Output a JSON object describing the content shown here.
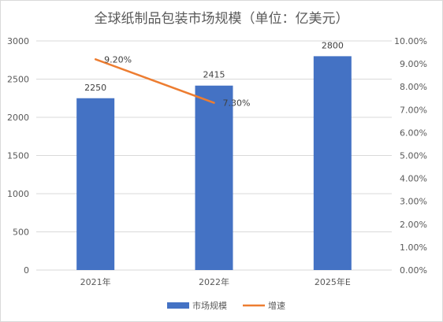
{
  "chart_data": {
    "type": "bar",
    "title": "全球纸制品包装市场规模（单位：亿美元）",
    "categories": [
      "2021年",
      "2022年",
      "2025年E"
    ],
    "series": [
      {
        "name": "市场规模",
        "type": "bar",
        "axis": "left",
        "values": [
          2250,
          2415,
          2800
        ],
        "labels": [
          "2250",
          "2415",
          "2800"
        ],
        "color": "#4472c4"
      },
      {
        "name": "增速",
        "type": "line",
        "axis": "right",
        "values": [
          0.092,
          0.073,
          null
        ],
        "labels": [
          "9.20%",
          "7.30%",
          null
        ],
        "color": "#ed7d31"
      }
    ],
    "y_left": {
      "ylim": [
        0,
        3000
      ],
      "ticks": [
        0,
        500,
        1000,
        1500,
        2000,
        2500,
        3000
      ],
      "tick_labels": [
        "0",
        "500",
        "1000",
        "1500",
        "2000",
        "2500",
        "3000"
      ]
    },
    "y_right": {
      "ylim": [
        0,
        0.1
      ],
      "ticks": [
        0,
        0.01,
        0.02,
        0.03,
        0.04,
        0.05,
        0.06,
        0.07,
        0.08,
        0.09,
        0.1
      ],
      "tick_labels": [
        "0.00%",
        "1.00%",
        "2.00%",
        "3.00%",
        "4.00%",
        "5.00%",
        "6.00%",
        "7.00%",
        "8.00%",
        "9.00%",
        "10.00%"
      ]
    },
    "grid": true,
    "legend_position": "bottom"
  }
}
